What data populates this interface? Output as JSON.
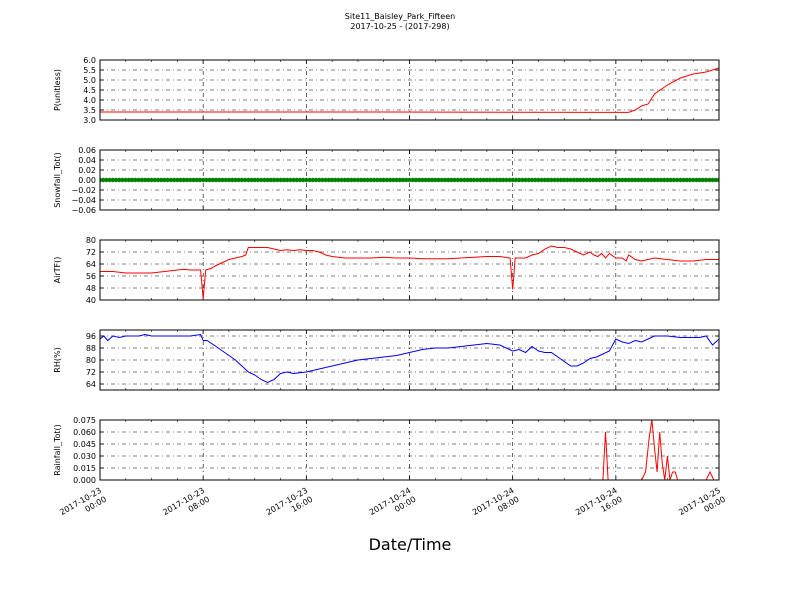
{
  "title": "Site11_Baisley_Park_Fifteen",
  "subtitle": "2017-10-25 - (2017-298)",
  "xlabel": "Date/Time",
  "x_ticks": [
    "2017-10-23 00:00",
    "2017-10-23 08:00",
    "2017-10-23 16:00",
    "2017-10-24 00:00",
    "2017-10-24 08:00",
    "2017-10-24 16:00",
    "2017-10-25 00:00"
  ],
  "colors": {
    "red": "#ff0000",
    "green": "#008000",
    "blue": "#0000ff"
  },
  "chart_data": [
    {
      "type": "line",
      "ylabel": "P(unitless)",
      "ylim": [
        3.0,
        6.0
      ],
      "yticks": [
        "3.0",
        "3.5",
        "4.0",
        "4.5",
        "5.0",
        "5.5",
        "6.0"
      ],
      "grid": true,
      "color": "red",
      "x_hours": [
        0,
        20,
        41,
        41.5,
        42,
        42.5,
        43,
        44,
        45,
        46,
        47,
        48
      ],
      "values": [
        3.4,
        3.4,
        3.38,
        3.5,
        3.7,
        3.8,
        4.3,
        4.75,
        5.1,
        5.3,
        5.4,
        5.6
      ]
    },
    {
      "type": "scatter",
      "ylabel": "Snowfall_Tot()",
      "ylim": [
        -0.06,
        0.06
      ],
      "yticks": [
        "−0.06",
        "−0.04",
        "−0.02",
        "0.00",
        "0.02",
        "0.04",
        "0.06"
      ],
      "grid": true,
      "color": "green",
      "x_hours": [
        0,
        48
      ],
      "values": [
        0,
        0
      ]
    },
    {
      "type": "line",
      "ylabel": "AirTF()",
      "ylim": [
        40,
        80
      ],
      "yticks": [
        "40",
        "48",
        "56",
        "64",
        "72",
        "80"
      ],
      "grid": true,
      "color": "red",
      "x_hours": [
        0,
        1,
        2,
        3,
        4,
        5,
        6,
        6.5,
        7,
        7.5,
        7.8,
        8.0,
        8.2,
        8.6,
        9,
        9.5,
        10,
        10.5,
        11,
        11.3,
        11.5,
        11.8,
        12,
        12.5,
        13,
        13.5,
        14,
        14.5,
        15,
        15.5,
        16,
        16.5,
        17,
        17.5,
        18,
        19,
        20,
        21,
        22,
        23,
        24,
        25,
        26,
        27,
        28,
        29,
        30,
        31,
        31.8,
        32.0,
        32.2,
        32.5,
        33,
        33.5,
        34,
        34.5,
        35,
        35.5,
        36,
        36.5,
        37,
        37.5,
        38,
        38.3,
        38.6,
        38.9,
        39.2,
        39.5,
        40,
        40.5,
        40.8,
        41,
        41.5,
        42,
        43,
        44,
        45,
        46,
        47,
        48
      ],
      "values": [
        59,
        59,
        58,
        58,
        58,
        59,
        60,
        60.5,
        60,
        60,
        60,
        41,
        60,
        61,
        63,
        65,
        67,
        68,
        69,
        70,
        75,
        75,
        75,
        75,
        75,
        74,
        73,
        73.5,
        73,
        73.5,
        73,
        73,
        72,
        70,
        69,
        68,
        68,
        68,
        68.5,
        68,
        68,
        67.5,
        67.5,
        67.5,
        68,
        68.5,
        69,
        69,
        68,
        47,
        68,
        68,
        68,
        70,
        71,
        74,
        76,
        75,
        75,
        74,
        72,
        70,
        72,
        70,
        69,
        71,
        68,
        71,
        68,
        68,
        66,
        70,
        67,
        66,
        68,
        67,
        66,
        66,
        67,
        67
      ]
    },
    {
      "type": "line",
      "ylabel": "RH(%)",
      "ylim": [
        60,
        100
      ],
      "yticks": [
        "64",
        "72",
        "80",
        "88",
        "96"
      ],
      "grid": true,
      "color": "blue",
      "x_hours": [
        0,
        0.3,
        0.6,
        1,
        1.5,
        2,
        3,
        3.5,
        4,
        5,
        6,
        7,
        7.8,
        8,
        8.3,
        9,
        9.5,
        10,
        10.5,
        11,
        11.5,
        12,
        12.5,
        13,
        13.5,
        14,
        14.5,
        15,
        16,
        17,
        18,
        19,
        20,
        21,
        22,
        23,
        24,
        25,
        26,
        27,
        28,
        29,
        30,
        31,
        31.5,
        32,
        32.5,
        33,
        33.5,
        34,
        34.5,
        35,
        35.5,
        36,
        36.5,
        37,
        37.5,
        38,
        38.5,
        39,
        39.5,
        40,
        40.5,
        41,
        41.5,
        42,
        42.5,
        43,
        44,
        45,
        46,
        46.5,
        47,
        47.5,
        48
      ],
      "values": [
        94,
        96,
        93,
        96,
        95,
        96,
        96,
        97,
        96,
        96,
        96,
        96,
        97,
        93,
        93,
        89,
        86,
        83,
        80,
        76,
        72,
        70,
        67,
        65,
        67,
        71,
        72,
        71,
        72,
        74,
        76,
        78,
        80,
        81,
        82,
        83,
        85,
        87,
        88,
        88,
        89,
        90,
        91,
        90,
        88,
        86,
        87,
        85,
        89,
        86,
        85,
        85,
        82,
        79,
        76,
        76,
        78,
        81,
        82,
        84,
        86,
        94,
        92,
        91,
        93,
        92,
        94,
        96,
        96,
        95,
        95,
        95,
        96,
        90,
        94
      ]
    },
    {
      "type": "line",
      "ylabel": "Rainfall_Tot()",
      "ylim": [
        0,
        0.075
      ],
      "yticks": [
        "0.000",
        "0.015",
        "0.030",
        "0.045",
        "0.060",
        "0.075"
      ],
      "grid": true,
      "color": "red",
      "x_hours": [
        0,
        39.0,
        39.2,
        39.4,
        39.6,
        42.0,
        42.3,
        42.6,
        42.8,
        43.0,
        43.2,
        43.4,
        43.6,
        43.8,
        44.0,
        44.2,
        44.4,
        44.6,
        44.8,
        45.0,
        45.2,
        45.4,
        47.0,
        47.3,
        47.6,
        48
      ],
      "values": [
        0,
        0,
        0.06,
        0,
        0,
        0,
        0.01,
        0.055,
        0.075,
        0.04,
        0.01,
        0.06,
        0.02,
        0,
        0.03,
        0,
        0.01,
        0.01,
        0,
        0,
        0,
        0,
        0,
        0.01,
        0,
        0
      ]
    }
  ]
}
